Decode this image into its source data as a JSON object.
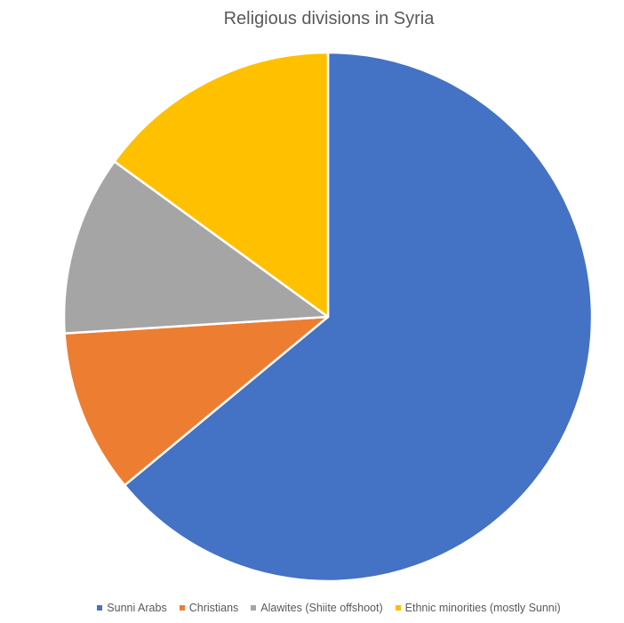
{
  "chart_data": {
    "type": "pie",
    "title": "Religious divisions in Syria",
    "categories": [
      "Sunni Arabs",
      "Christians",
      "Alawites (Shiite offshoot)",
      "Ethnic minorities (mostly Sunni)"
    ],
    "values": [
      64,
      10,
      11,
      15
    ],
    "colors": [
      "#4472C4",
      "#ED7D31",
      "#A5A5A5",
      "#FFC000"
    ],
    "legend_position": "bottom",
    "start_angle": "12 o'clock, clockwise"
  }
}
